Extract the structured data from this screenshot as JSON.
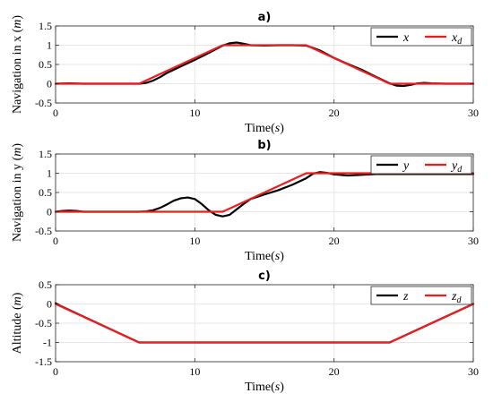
{
  "chart_data": [
    {
      "type": "line",
      "title": "a)",
      "xlabel": "Time(s)",
      "ylabel": "Navigation in x (m)",
      "xlim": [
        0,
        30
      ],
      "ylim": [
        -0.5,
        1.5
      ],
      "xticks": [
        "0",
        "10",
        "20",
        "30"
      ],
      "yticks": [
        "-0.5",
        "0",
        "0.5",
        "1",
        "1.5"
      ],
      "grid": true,
      "legend": "top-right",
      "series": [
        {
          "name": "x",
          "color": "#000000",
          "x": [
            0,
            1,
            2,
            3,
            4,
            5,
            6,
            6.5,
            7,
            7.5,
            8,
            9,
            10,
            11,
            12,
            12.5,
            13,
            13.5,
            14,
            15,
            16,
            17,
            18,
            18.5,
            19,
            20,
            21,
            22,
            23,
            24,
            24.5,
            25,
            25.5,
            26,
            26.5,
            27,
            28,
            29,
            30
          ],
          "y": [
            0,
            0.01,
            0,
            0,
            0,
            0,
            0,
            0.02,
            0.08,
            0.17,
            0.28,
            0.45,
            0.62,
            0.8,
            0.99,
            1.05,
            1.07,
            1.04,
            1.0,
            0.99,
            1.0,
            1.0,
            0.99,
            0.93,
            0.86,
            0.67,
            0.51,
            0.36,
            0.18,
            0.01,
            -0.05,
            -0.06,
            -0.03,
            0.01,
            0.02,
            0.01,
            0,
            0,
            0
          ]
        },
        {
          "name": "x_d",
          "color": "#ee1c1c",
          "x": [
            0,
            6,
            12,
            18,
            24,
            30
          ],
          "y": [
            0,
            0,
            1,
            1,
            0,
            0
          ]
        }
      ]
    },
    {
      "type": "line",
      "title": "b)",
      "xlabel": "Time(s)",
      "ylabel": "Navigation in y (m)",
      "xlim": [
        0,
        30
      ],
      "ylim": [
        -0.5,
        1.5
      ],
      "xticks": [
        "0",
        "10",
        "20",
        "30"
      ],
      "yticks": [
        "-0.5",
        "0",
        "0.5",
        "1",
        "1.5"
      ],
      "grid": true,
      "legend": "top-right",
      "series": [
        {
          "name": "y",
          "color": "#000000",
          "x": [
            0,
            0.5,
            1,
            1.5,
            2,
            3,
            4,
            5,
            6,
            6.5,
            7,
            7.5,
            8,
            8.5,
            9,
            9.5,
            10,
            10.5,
            11,
            11.5,
            12,
            12.5,
            13,
            13.5,
            14,
            15,
            16,
            17,
            18,
            18.5,
            19,
            19.5,
            20,
            21,
            22,
            23,
            24,
            25,
            26,
            27,
            28,
            29,
            30
          ],
          "y": [
            0,
            0.02,
            0.03,
            0.02,
            0,
            0,
            0,
            0,
            0,
            0.01,
            0.04,
            0.1,
            0.19,
            0.29,
            0.35,
            0.37,
            0.33,
            0.2,
            0.04,
            -0.08,
            -0.12,
            -0.08,
            0.06,
            0.2,
            0.33,
            0.45,
            0.56,
            0.7,
            0.87,
            0.99,
            1.03,
            1.01,
            0.97,
            0.94,
            0.96,
            0.98,
            0.98,
            0.98,
            0.98,
            0.98,
            0.98,
            0.98,
            0.98
          ]
        },
        {
          "name": "y_d",
          "color": "#ee1c1c",
          "x": [
            0,
            6,
            12,
            18,
            30
          ],
          "y": [
            0,
            0,
            0,
            1,
            1
          ]
        }
      ]
    },
    {
      "type": "line",
      "title": "c)",
      "xlabel": "Time(s)",
      "ylabel": "Altitude (m)",
      "xlim": [
        0,
        30
      ],
      "ylim": [
        -1.5,
        0.5
      ],
      "xticks": [
        "0",
        "10",
        "20",
        "30"
      ],
      "yticks": [
        "-1.5",
        "-1",
        "-0.5",
        "0",
        "0.5"
      ],
      "grid": true,
      "legend": "top-right",
      "series": [
        {
          "name": "z",
          "color": "#000000",
          "x": [
            0,
            0.3,
            6,
            24,
            30
          ],
          "y": [
            0.02,
            -0.04,
            -1,
            -1,
            0
          ]
        },
        {
          "name": "z_d",
          "color": "#ee1c1c",
          "x": [
            0,
            6,
            24,
            30
          ],
          "y": [
            0,
            -1,
            -1,
            0
          ]
        }
      ]
    }
  ]
}
